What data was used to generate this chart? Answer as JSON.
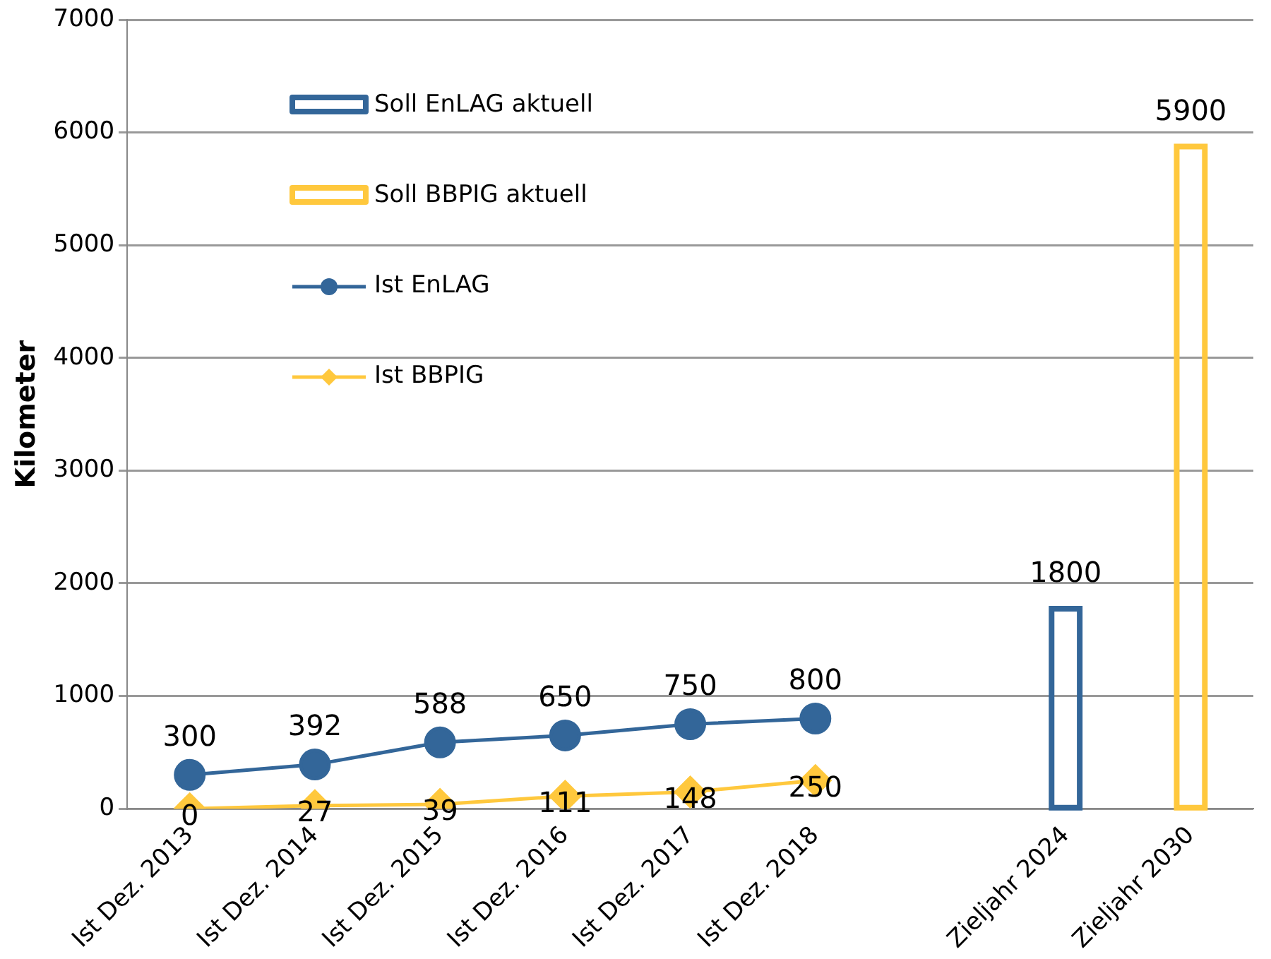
{
  "chart_data": {
    "type": "bar",
    "ylabel": "Kilometer",
    "categories": [
      "Ist Dez. 2013",
      "Ist Dez. 2014",
      "Ist Dez. 2015",
      "Ist Dez. 2016",
      "Ist Dez. 2017",
      "Ist Dez. 2018",
      null,
      "Zieljahr 2024",
      "Zieljahr 2030"
    ],
    "series": [
      {
        "name": "Soll EnLAG aktuell",
        "color": "#336699",
        "values": [
          null,
          null,
          null,
          null,
          null,
          null,
          null,
          1800,
          null
        ]
      },
      {
        "name": "Soll BBPIG aktuell",
        "color": "#ffc83d",
        "values": [
          null,
          null,
          null,
          null,
          null,
          null,
          null,
          null,
          5900
        ]
      },
      {
        "name": "Ist EnLAG",
        "type": "line",
        "color": "#336699",
        "marker": "circle",
        "values": [
          300,
          392,
          588,
          650,
          750,
          800,
          null,
          null,
          null
        ]
      },
      {
        "name": "Ist BBPIG",
        "type": "line",
        "color": "#ffc83d",
        "marker": "diamond",
        "values": [
          0,
          27,
          39,
          111,
          148,
          250,
          null,
          null,
          null
        ]
      }
    ],
    "ylim": [
      0,
      7000
    ],
    "yticks": [
      0,
      1000,
      2000,
      3000,
      4000,
      5000,
      6000,
      7000
    ],
    "grid": "y",
    "legend": "top left",
    "data_labels": true
  }
}
